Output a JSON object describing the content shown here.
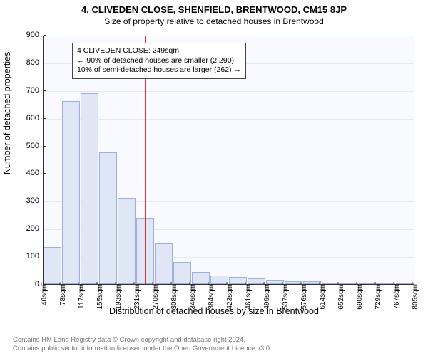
{
  "header": {
    "address": "4, CLIVEDEN CLOSE, SHENFIELD, BRENTWOOD, CM15 8JP",
    "subtitle": "Size of property relative to detached houses in Brentwood"
  },
  "chart": {
    "type": "histogram",
    "ylabel": "Number of detached properties",
    "xlabel": "Distribution of detached houses by size in Brentwood",
    "ylim": [
      0,
      900
    ],
    "ytick_step": 100,
    "yticks": [
      0,
      100,
      200,
      300,
      400,
      500,
      600,
      700,
      800,
      900
    ],
    "xticks": [
      "40sqm",
      "78sqm",
      "117sqm",
      "155sqm",
      "193sqm",
      "231sqm",
      "270sqm",
      "308sqm",
      "346sqm",
      "384sqm",
      "423sqm",
      "461sqm",
      "499sqm",
      "537sqm",
      "576sqm",
      "614sqm",
      "652sqm",
      "690sqm",
      "729sqm",
      "767sqm",
      "805sqm"
    ],
    "bin_edges_sqm": [
      40,
      78,
      117,
      155,
      193,
      231,
      270,
      308,
      346,
      384,
      423,
      461,
      499,
      537,
      576,
      614,
      652,
      690,
      729,
      767,
      805
    ],
    "values": [
      135,
      660,
      690,
      475,
      310,
      240,
      150,
      80,
      45,
      30,
      25,
      20,
      15,
      10,
      10,
      5,
      0,
      0,
      0,
      0
    ],
    "bar_fill": "#dfe6f5",
    "bar_border": "#9fb1da",
    "plot_bg": "#f8faff",
    "grid_color": "#e6e9f2",
    "axis_color": "#333333",
    "ref_line_sqm": 249,
    "ref_line_color": "#d33",
    "title_fontsize": 13,
    "label_fontsize": 12.5,
    "tick_fontsize": 11
  },
  "annotation": {
    "line1": "4 CLIVEDEN CLOSE: 249sqm",
    "line2": "← 90% of detached houses are smaller (2,290)",
    "line3": "10% of semi-detached houses are larger (262) →"
  },
  "footer": {
    "line1": "Contains HM Land Registry data © Crown copyright and database right 2024.",
    "line2": "Contains public sector information licensed under the Open Government Licence v3.0."
  }
}
